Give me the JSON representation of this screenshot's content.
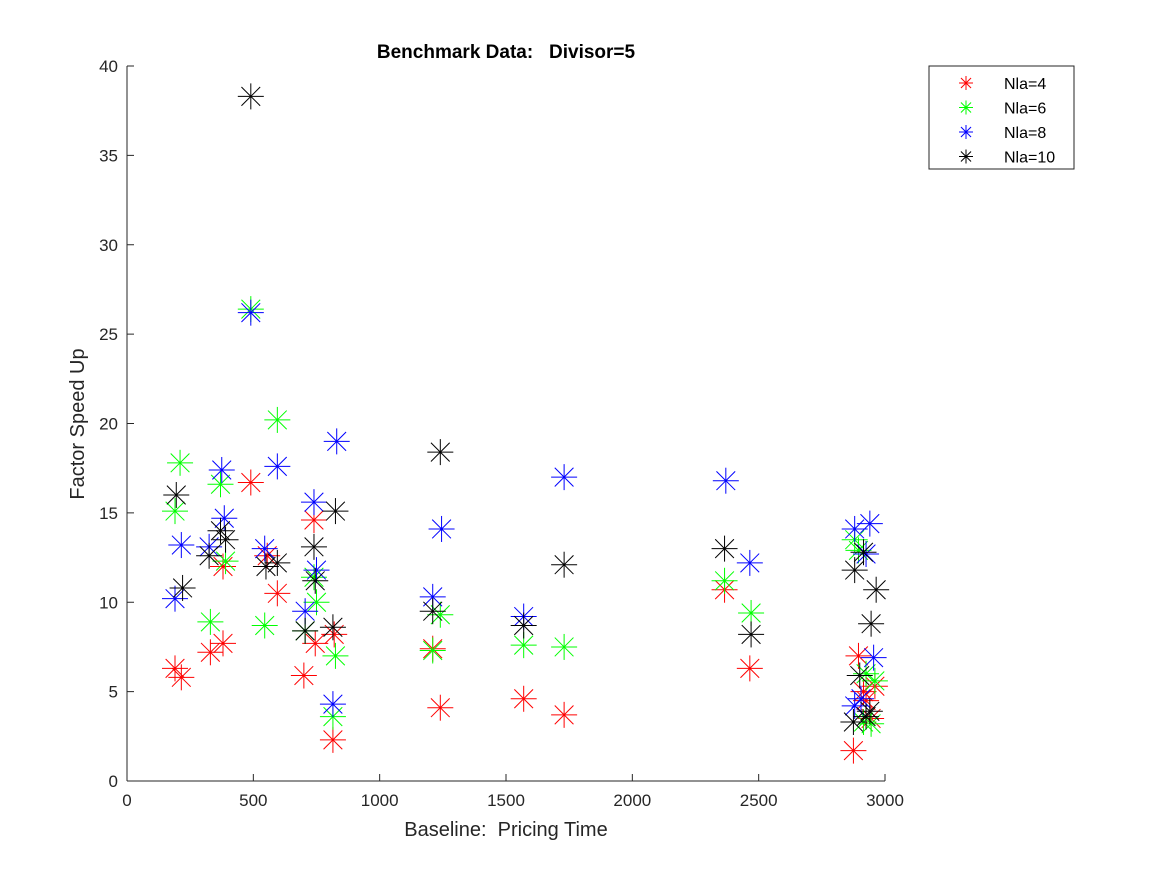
{
  "chart_data": {
    "type": "scatter",
    "title": "Benchmark Data:   Divisor=5",
    "xlabel": "Baseline:  Pricing Time",
    "ylabel": "Factor Speed Up",
    "xlim": [
      0,
      3000
    ],
    "ylim": [
      0,
      40
    ],
    "xticks": [
      0,
      500,
      1000,
      1500,
      2000,
      2500,
      3000
    ],
    "yticks": [
      0,
      5,
      10,
      15,
      20,
      25,
      30,
      35,
      40
    ],
    "grid": false,
    "legend_position": "top-right",
    "marker": "asterisk",
    "series": [
      {
        "name": "Nla=4",
        "color": "#ff0000",
        "points": [
          [
            190,
            6.3
          ],
          [
            215,
            5.8
          ],
          [
            330,
            7.2
          ],
          [
            380,
            7.7
          ],
          [
            380,
            12.0
          ],
          [
            490,
            16.7
          ],
          [
            555,
            12.6
          ],
          [
            595,
            10.5
          ],
          [
            700,
            5.9
          ],
          [
            740,
            14.6
          ],
          [
            745,
            7.7
          ],
          [
            815,
            2.3
          ],
          [
            820,
            8.2
          ],
          [
            1210,
            7.4
          ],
          [
            1240,
            4.1
          ],
          [
            1570,
            4.6
          ],
          [
            1730,
            3.7
          ],
          [
            2365,
            10.7
          ],
          [
            2465,
            6.3
          ],
          [
            2875,
            1.7
          ],
          [
            2895,
            7.0
          ],
          [
            2915,
            5.0
          ],
          [
            2925,
            4.5
          ],
          [
            2945,
            3.5
          ],
          [
            2960,
            5.3
          ]
        ]
      },
      {
        "name": "Nla=6",
        "color": "#00ff00",
        "points": [
          [
            190,
            15.1
          ],
          [
            210,
            17.8
          ],
          [
            330,
            8.9
          ],
          [
            370,
            16.6
          ],
          [
            390,
            12.3
          ],
          [
            490,
            26.4
          ],
          [
            545,
            8.7
          ],
          [
            595,
            20.2
          ],
          [
            705,
            8.4
          ],
          [
            740,
            11.4
          ],
          [
            750,
            10.0
          ],
          [
            815,
            3.6
          ],
          [
            825,
            7.0
          ],
          [
            1210,
            7.3
          ],
          [
            1240,
            9.3
          ],
          [
            1570,
            7.6
          ],
          [
            1730,
            7.5
          ],
          [
            2365,
            11.2
          ],
          [
            2470,
            9.4
          ],
          [
            2880,
            13.5
          ],
          [
            2895,
            12.9
          ],
          [
            2915,
            3.3
          ],
          [
            2925,
            6.0
          ],
          [
            2945,
            3.2
          ],
          [
            2960,
            5.6
          ]
        ]
      },
      {
        "name": "Nla=8",
        "color": "#0000ff",
        "points": [
          [
            190,
            10.2
          ],
          [
            215,
            13.2
          ],
          [
            325,
            13.1
          ],
          [
            375,
            17.4
          ],
          [
            385,
            14.7
          ],
          [
            490,
            26.2
          ],
          [
            545,
            13.0
          ],
          [
            595,
            17.6
          ],
          [
            705,
            9.5
          ],
          [
            740,
            15.6
          ],
          [
            750,
            11.8
          ],
          [
            815,
            4.3
          ],
          [
            830,
            19.0
          ],
          [
            1210,
            10.3
          ],
          [
            1245,
            14.1
          ],
          [
            1570,
            9.2
          ],
          [
            1730,
            17.0
          ],
          [
            2370,
            16.8
          ],
          [
            2465,
            12.2
          ],
          [
            2880,
            4.2
          ],
          [
            2880,
            14.1
          ],
          [
            2905,
            4.6
          ],
          [
            2925,
            12.7
          ],
          [
            2940,
            14.4
          ],
          [
            2955,
            6.9
          ]
        ]
      },
      {
        "name": "Nla=10",
        "color": "#000000",
        "points": [
          [
            195,
            16.0
          ],
          [
            220,
            10.8
          ],
          [
            325,
            12.6
          ],
          [
            370,
            14.0
          ],
          [
            390,
            13.5
          ],
          [
            490,
            38.3
          ],
          [
            550,
            12.0
          ],
          [
            595,
            12.2
          ],
          [
            705,
            8.4
          ],
          [
            740,
            13.1
          ],
          [
            745,
            11.2
          ],
          [
            815,
            8.6
          ],
          [
            825,
            15.1
          ],
          [
            1210,
            9.5
          ],
          [
            1240,
            18.4
          ],
          [
            1570,
            8.7
          ],
          [
            1730,
            12.1
          ],
          [
            2365,
            13.0
          ],
          [
            2470,
            8.2
          ],
          [
            2875,
            3.3
          ],
          [
            2880,
            11.8
          ],
          [
            2900,
            5.9
          ],
          [
            2915,
            12.8
          ],
          [
            2925,
            3.6
          ],
          [
            2940,
            3.9
          ],
          [
            2945,
            8.8
          ],
          [
            2965,
            10.7
          ]
        ]
      }
    ]
  }
}
